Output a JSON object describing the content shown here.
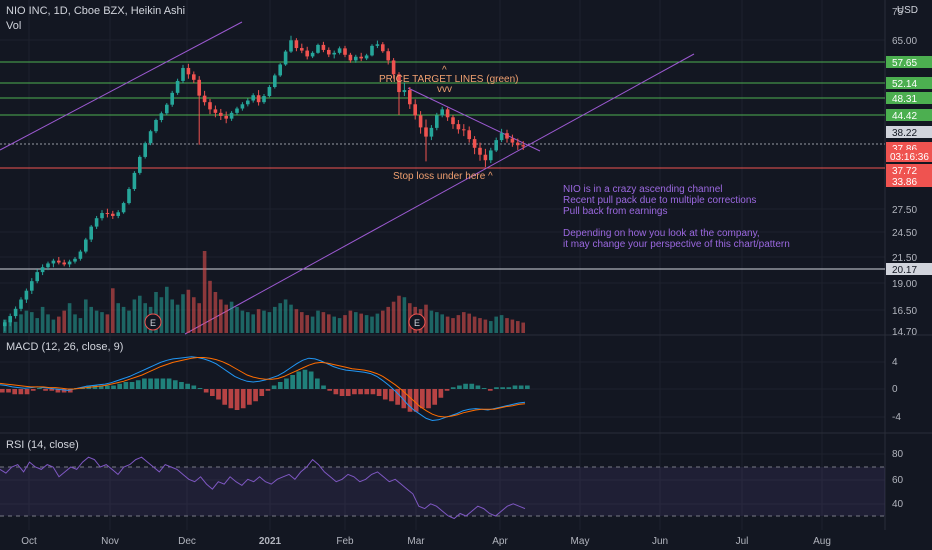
{
  "header": {
    "title": "NIO INC, 1D, Cboe BZX, Heikin Ashi",
    "vol_label": "Vol",
    "currency": "USD",
    "currency_icon": "chevron-down-icon"
  },
  "panes": {
    "macd_title": "MACD (12, 26, close, 9)",
    "rsi_title": "RSI (14, close)"
  },
  "annotations": {
    "price_target_lines": "PRICE TARGET LINES (green)",
    "price_target_caret": "^",
    "price_target_arrows": "vvv",
    "stop_loss": "Stop loss under here ^",
    "notes": [
      "NIO is in a crazy ascending channel",
      "Recent pull pack due to multiple corrections",
      "Pull back from earnings",
      "",
      "Depending on how you look at the company,",
      "it may change your perspective of this chart/pattern"
    ],
    "earnings_marker": "E"
  },
  "colors": {
    "background": "#131722",
    "up": "#26a69a",
    "down": "#ef5350",
    "green_line": "#4caf50",
    "red_line": "#ef5350",
    "channel": "#9b59d0",
    "macd": "#2196f3",
    "signal": "#ff6d00",
    "rsi": "#7e57c2"
  },
  "chart_data": [
    {
      "type": "candlestick",
      "title": "NIO INC, 1D, Cboe BZX, Heikin Ashi",
      "x_ticks": [
        "Oct",
        "Nov",
        "Dec",
        "2021",
        "Feb",
        "Mar",
        "Apr",
        "May",
        "Jun",
        "Jul",
        "Aug"
      ],
      "y_ticks": [
        75,
        65.0,
        57.65,
        52.14,
        48.31,
        44.42,
        38.22,
        37.86,
        37.72,
        33.86,
        27.5,
        24.5,
        21.5,
        20.17,
        19.0,
        16.5,
        14.7
      ],
      "y_scale": "log",
      "price_target_lines": [
        57.65,
        52.14,
        48.31,
        44.42
      ],
      "stop_loss_line": 37.72,
      "support_line": 20.17,
      "dotted_price_line": 38.22,
      "last_price": 37.86,
      "countdown": "03:16:36",
      "low_marker": 33.86,
      "earnings": [
        "Nov",
        "Mar"
      ],
      "candles_ohlc": [
        [
          15.2,
          15.7,
          14.8,
          15.5
        ],
        [
          15.5,
          16.2,
          15.2,
          16.0
        ],
        [
          16.0,
          16.8,
          15.8,
          16.6
        ],
        [
          16.6,
          17.6,
          16.4,
          17.4
        ],
        [
          17.4,
          18.4,
          17.1,
          18.2
        ],
        [
          18.2,
          19.4,
          17.9,
          19.1
        ],
        [
          19.1,
          20.3,
          18.9,
          20.0
        ],
        [
          20.0,
          20.8,
          19.7,
          20.5
        ],
        [
          20.5,
          21.1,
          20.2,
          20.9
        ],
        [
          20.9,
          21.4,
          20.5,
          21.2
        ],
        [
          21.2,
          21.6,
          20.8,
          21.0
        ],
        [
          21.0,
          21.3,
          20.6,
          20.8
        ],
        [
          20.8,
          21.3,
          20.5,
          21.1
        ],
        [
          21.1,
          21.6,
          20.9,
          21.4
        ],
        [
          21.4,
          22.4,
          21.2,
          22.2
        ],
        [
          22.2,
          23.8,
          22.0,
          23.6
        ],
        [
          23.6,
          25.4,
          23.3,
          25.2
        ],
        [
          25.2,
          26.6,
          24.9,
          26.3
        ],
        [
          26.3,
          27.4,
          26.0,
          27.0
        ],
        [
          27.0,
          27.6,
          26.4,
          26.9
        ],
        [
          26.9,
          27.3,
          26.2,
          26.6
        ],
        [
          26.6,
          27.4,
          26.3,
          27.1
        ],
        [
          27.1,
          28.6,
          26.9,
          28.4
        ],
        [
          28.4,
          30.8,
          28.2,
          30.5
        ],
        [
          30.5,
          33.4,
          30.2,
          33.1
        ],
        [
          33.1,
          36.2,
          32.8,
          35.9
        ],
        [
          35.9,
          38.8,
          35.6,
          38.5
        ],
        [
          38.5,
          41.2,
          38.1,
          40.9
        ],
        [
          40.9,
          43.6,
          40.5,
          43.3
        ],
        [
          43.3,
          45.2,
          42.8,
          44.8
        ],
        [
          44.8,
          47.2,
          44.3,
          46.8
        ],
        [
          46.8,
          50.2,
          46.3,
          49.7
        ],
        [
          49.7,
          53.4,
          49.2,
          52.8
        ],
        [
          52.8,
          57.3,
          52.2,
          56.4
        ],
        [
          56.4,
          57.6,
          53.4,
          54.6
        ],
        [
          54.6,
          55.4,
          52.2,
          53.1
        ],
        [
          53.1,
          54.1,
          38.2,
          49.0
        ],
        [
          49.0,
          50.2,
          46.6,
          47.4
        ],
        [
          47.4,
          48.2,
          44.6,
          45.7
        ],
        [
          45.7,
          46.6,
          43.9,
          44.9
        ],
        [
          44.9,
          45.8,
          43.3,
          44.2
        ],
        [
          44.2,
          45.2,
          42.6,
          43.6
        ],
        [
          43.6,
          45.3,
          43.1,
          44.9
        ],
        [
          44.9,
          46.3,
          44.4,
          45.9
        ],
        [
          45.9,
          47.4,
          45.4,
          46.9
        ],
        [
          46.9,
          48.3,
          46.4,
          47.8
        ],
        [
          47.8,
          49.6,
          47.3,
          49.1
        ],
        [
          49.1,
          50.4,
          46.6,
          47.4
        ],
        [
          47.4,
          49.4,
          47.0,
          48.9
        ],
        [
          48.9,
          51.7,
          48.6,
          51.2
        ],
        [
          51.2,
          54.8,
          50.8,
          54.3
        ],
        [
          54.3,
          57.8,
          53.9,
          57.4
        ],
        [
          57.4,
          61.8,
          57.0,
          61.3
        ],
        [
          61.3,
          66.4,
          60.9,
          64.9
        ],
        [
          64.9,
          65.6,
          61.4,
          62.4
        ],
        [
          62.4,
          63.8,
          60.8,
          61.6
        ],
        [
          61.6,
          62.8,
          58.9,
          59.8
        ],
        [
          59.8,
          61.4,
          59.3,
          60.9
        ],
        [
          60.9,
          63.8,
          60.6,
          63.4
        ],
        [
          63.4,
          64.4,
          61.1,
          61.8
        ],
        [
          61.8,
          62.6,
          59.6,
          60.4
        ],
        [
          60.4,
          61.6,
          59.2,
          60.9
        ],
        [
          60.9,
          62.9,
          60.4,
          62.3
        ],
        [
          62.3,
          63.1,
          59.6,
          60.3
        ],
        [
          60.3,
          60.9,
          57.9,
          58.6
        ],
        [
          58.6,
          60.3,
          57.9,
          59.7
        ],
        [
          59.7,
          60.9,
          58.4,
          59.2
        ],
        [
          59.2,
          60.6,
          58.7,
          60.1
        ],
        [
          60.1,
          63.6,
          59.8,
          63.1
        ],
        [
          63.1,
          64.8,
          62.4,
          63.6
        ],
        [
          63.6,
          64.3,
          60.9,
          61.4
        ],
        [
          61.4,
          62.3,
          57.4,
          58.6
        ],
        [
          58.6,
          59.3,
          53.4,
          54.6
        ],
        [
          54.6,
          55.2,
          44.4,
          49.9
        ],
        [
          49.9,
          52.4,
          48.9,
          50.4
        ],
        [
          50.4,
          51.2,
          45.8,
          46.9
        ],
        [
          46.9,
          48.1,
          43.4,
          44.3
        ],
        [
          44.3,
          45.3,
          40.4,
          41.7
        ],
        [
          41.7,
          43.4,
          35.1,
          39.8
        ],
        [
          39.8,
          42.2,
          39.1,
          41.6
        ],
        [
          41.6,
          44.9,
          41.1,
          44.3
        ],
        [
          44.3,
          46.3,
          43.9,
          45.7
        ],
        [
          45.7,
          46.1,
          43.1,
          43.9
        ],
        [
          43.9,
          44.4,
          41.4,
          42.4
        ],
        [
          42.4,
          43.3,
          40.4,
          41.3
        ],
        [
          41.3,
          42.4,
          39.9,
          41.1
        ],
        [
          41.1,
          41.9,
          38.6,
          39.3
        ],
        [
          39.3,
          39.9,
          36.4,
          37.6
        ],
        [
          37.6,
          38.6,
          35.2,
          36.3
        ],
        [
          36.3,
          37.4,
          34.1,
          35.3
        ],
        [
          35.3,
          37.6,
          34.8,
          37.1
        ],
        [
          37.1,
          39.6,
          36.8,
          39.1
        ],
        [
          39.1,
          41.4,
          38.7,
          40.5
        ],
        [
          40.5,
          41.2,
          38.6,
          39.4
        ],
        [
          39.4,
          40.2,
          37.8,
          38.6
        ],
        [
          38.6,
          39.4,
          37.2,
          38.1
        ],
        [
          38.1,
          38.9,
          37.2,
          37.86
        ]
      ]
    },
    {
      "type": "bar",
      "title": "Vol",
      "values": [
        18,
        22,
        15,
        25,
        30,
        28,
        20,
        35,
        25,
        18,
        22,
        30,
        40,
        25,
        20,
        45,
        35,
        30,
        28,
        25,
        60,
        40,
        35,
        30,
        45,
        50,
        40,
        35,
        55,
        48,
        62,
        45,
        38,
        52,
        58,
        48,
        40,
        110,
        70,
        55,
        45,
        38,
        42,
        35,
        30,
        28,
        25,
        32,
        30,
        28,
        35,
        40,
        45,
        38,
        32,
        28,
        24,
        22,
        30,
        28,
        25,
        22,
        20,
        24,
        30,
        28,
        26,
        24,
        22,
        26,
        30,
        35,
        42,
        50,
        48,
        40,
        35,
        32,
        38,
        30,
        28,
        25,
        22,
        20,
        24,
        28,
        26,
        22,
        20,
        18,
        16,
        22,
        24,
        20,
        18,
        16,
        14
      ]
    },
    {
      "type": "line",
      "title": "MACD (12, 26, close, 9)",
      "y_ticks": [
        4,
        0,
        -4
      ],
      "series": [
        {
          "values": [
            0.6,
            0.5,
            0.3,
            0.2,
            0.1,
            0.2,
            0.3,
            0.2,
            0.1,
            0.0,
            -0.1,
            -0.2,
            0.0,
            0.2,
            0.4,
            0.5,
            0.6,
            0.7,
            0.9,
            1.2,
            1.5,
            1.8,
            2.2,
            2.6,
            3.0,
            3.4,
            3.8,
            4.1,
            4.3,
            4.4,
            4.5,
            4.6,
            4.5,
            4.3,
            4.0,
            3.6,
            3.0,
            2.4,
            1.8,
            1.4,
            1.1,
            1.0,
            1.1,
            1.3,
            1.6,
            1.9,
            2.4,
            3.0,
            3.6,
            4.1,
            4.4,
            4.3,
            4.0,
            3.6,
            3.2,
            2.9,
            2.7,
            2.6,
            2.5,
            2.4,
            2.2,
            1.8,
            1.2,
            0.5,
            -0.3,
            -1.2,
            -2.2,
            -3.0,
            -3.6,
            -4.2,
            -4.5,
            -4.4,
            -4.1,
            -3.8,
            -3.5,
            -3.1,
            -2.9,
            -2.8,
            -2.9,
            -3.0,
            -2.8,
            -2.6,
            -2.4,
            -2.2,
            -2.0,
            -1.9
          ]
        },
        {
          "values": [
            0.8,
            0.7,
            0.6,
            0.5,
            0.4,
            0.3,
            0.3,
            0.3,
            0.2,
            0.2,
            0.1,
            0.0,
            0.0,
            0.1,
            0.2,
            0.3,
            0.4,
            0.5,
            0.7,
            0.9,
            1.1,
            1.4,
            1.7,
            2.0,
            2.4,
            2.8,
            3.2,
            3.5,
            3.8,
            4.0,
            4.2,
            4.4,
            4.5,
            4.5,
            4.4,
            4.2,
            3.9,
            3.5,
            3.0,
            2.5,
            2.0,
            1.7,
            1.5,
            1.4,
            1.4,
            1.5,
            1.8,
            2.2,
            2.6,
            3.0,
            3.4,
            3.7,
            3.8,
            3.7,
            3.5,
            3.3,
            3.1,
            2.9,
            2.8,
            2.7,
            2.5,
            2.2,
            1.8,
            1.2,
            0.6,
            -0.1,
            -0.9,
            -1.7,
            -2.5,
            -3.1,
            -3.6,
            -3.9,
            -4.0,
            -3.9,
            -3.7,
            -3.4,
            -3.2,
            -3.0,
            -2.9,
            -2.9,
            -2.9,
            -2.7,
            -2.5,
            -2.4,
            -2.2,
            -2.1
          ]
        }
      ]
    },
    {
      "type": "line",
      "title": "RSI (14, close)",
      "y_ticks": [
        80,
        60,
        40
      ],
      "values": [
        68,
        65,
        70,
        72,
        66,
        74,
        70,
        68,
        72,
        70,
        62,
        66,
        70,
        68,
        74,
        78,
        76,
        70,
        72,
        68,
        64,
        70,
        72,
        76,
        78,
        74,
        70,
        66,
        72,
        70,
        68,
        64,
        60,
        58,
        62,
        56,
        52,
        58,
        56,
        62,
        58,
        55,
        60,
        58,
        62,
        58,
        56,
        60,
        62,
        64,
        60,
        66,
        70,
        76,
        72,
        66,
        62,
        58,
        60,
        64,
        62,
        58,
        60,
        64,
        66,
        62,
        58,
        60,
        56,
        52,
        48,
        38,
        36,
        40,
        38,
        34,
        30,
        28,
        32,
        30,
        34,
        38,
        36,
        32,
        30,
        34,
        38,
        40,
        38,
        36
      ]
    }
  ]
}
